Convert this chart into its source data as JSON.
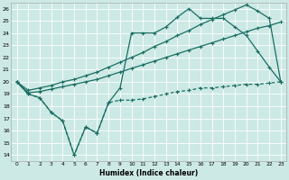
{
  "xlabel": "Humidex (Indice chaleur)",
  "bg_color": "#cce9e5",
  "grid_color": "#ffffff",
  "line_color": "#1a6e63",
  "xlim": [
    -0.5,
    23.5
  ],
  "ylim": [
    13.5,
    26.5
  ],
  "xticks": [
    0,
    1,
    2,
    3,
    4,
    5,
    6,
    7,
    8,
    9,
    10,
    11,
    12,
    13,
    14,
    15,
    16,
    17,
    18,
    19,
    20,
    21,
    22,
    23
  ],
  "yticks": [
    14,
    15,
    16,
    17,
    18,
    19,
    20,
    21,
    22,
    23,
    24,
    25,
    26
  ],
  "line_dashed_x": [
    0,
    1,
    2,
    3,
    4,
    5,
    6,
    7,
    8,
    9,
    10,
    11,
    12,
    13,
    14,
    15,
    16,
    17,
    18,
    19,
    20,
    21,
    22,
    23
  ],
  "line_dashed_y": [
    20,
    19,
    18.7,
    17.5,
    16.8,
    14,
    16.3,
    15.8,
    18.3,
    18.5,
    18.5,
    18.6,
    18.8,
    19.0,
    19.2,
    19.3,
    19.5,
    19.5,
    19.6,
    19.7,
    19.8,
    19.8,
    19.9,
    20.0
  ],
  "line_lower_x": [
    0,
    1,
    2,
    3,
    4,
    5,
    6,
    7,
    8,
    9,
    10,
    11,
    12,
    13,
    14,
    15,
    16,
    17,
    18,
    19,
    20,
    21,
    22,
    23
  ],
  "line_lower_y": [
    20,
    19.1,
    19.2,
    19.4,
    19.6,
    19.8,
    20.0,
    20.2,
    20.5,
    20.8,
    21.1,
    21.4,
    21.7,
    22.0,
    22.3,
    22.6,
    22.9,
    23.2,
    23.5,
    23.8,
    24.1,
    24.4,
    24.6,
    24.9
  ],
  "line_upper_x": [
    0,
    1,
    2,
    3,
    4,
    5,
    6,
    7,
    8,
    9,
    10,
    11,
    12,
    13,
    14,
    15,
    16,
    17,
    18,
    19,
    20,
    21,
    22,
    23
  ],
  "line_upper_y": [
    20,
    19.3,
    19.5,
    19.7,
    20.0,
    20.2,
    20.5,
    20.8,
    21.2,
    21.6,
    22.0,
    22.4,
    22.9,
    23.3,
    23.8,
    24.2,
    24.7,
    25.1,
    25.5,
    25.9,
    26.3,
    25.8,
    25.2,
    20.0
  ],
  "line_main_x": [
    0,
    1,
    2,
    3,
    4,
    5,
    6,
    7,
    8,
    9,
    10,
    11,
    12,
    13,
    14,
    15,
    16,
    17,
    18,
    19,
    20,
    21,
    22,
    23
  ],
  "line_main_y": [
    20,
    19,
    18.7,
    17.5,
    16.8,
    14,
    16.3,
    15.8,
    18.3,
    19.5,
    24.0,
    24.0,
    24.0,
    24.5,
    25.3,
    26.0,
    25.2,
    25.2,
    25.2,
    24.5,
    23.8,
    22.5,
    21.2,
    20.0
  ]
}
